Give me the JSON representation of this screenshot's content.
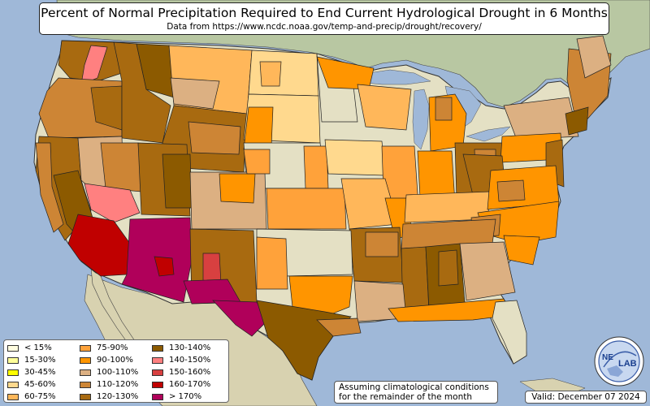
{
  "title": "Percent of Normal Precipitation Required to End Current Hydrological Drought in 6 Months",
  "subtitle": "Data from https://www.ncdc.noaa.gov/temp-and-precip/drought/recovery/",
  "note_line1": "Assuming climatological conditions",
  "note_line2": "for the remainder of the month",
  "valid": "Valid: December 07 2024",
  "logo_text_a": "NE",
  "logo_text_b": "LAB",
  "colors": {
    "ocean": "#9fb8d8",
    "land": "#e4e0c4",
    "c_lt15": "#fffde0",
    "c_15_30": "#ffff99",
    "c_30_45": "#ffff00",
    "c_45_60": "#ffd98e",
    "c_60_75": "#ffb75a",
    "c_75_90": "#ffa23a",
    "c_90_100": "#ff9500",
    "c_100_110": "#dcb082",
    "c_110_120": "#cd8535",
    "c_120_130": "#a86a10",
    "c_130_140": "#8c5a00",
    "c_140_150": "#ff8080",
    "c_150_160": "#d84040",
    "c_160_170": "#c00000",
    "c_gt170": "#b0005a"
  },
  "legend": {
    "items": [
      {
        "label": "< 15%",
        "color": "#fffde0"
      },
      {
        "label": "15-30%",
        "color": "#ffff99"
      },
      {
        "label": "30-45%",
        "color": "#ffff00"
      },
      {
        "label": "45-60%",
        "color": "#ffd98e"
      },
      {
        "label": "60-75%",
        "color": "#ffb75a"
      },
      {
        "label": "75-90%",
        "color": "#ffa23a"
      },
      {
        "label": "90-100%",
        "color": "#ff9500"
      },
      {
        "label": "100-110%",
        "color": "#dcb082"
      },
      {
        "label": "110-120%",
        "color": "#cd8535"
      },
      {
        "label": "120-130%",
        "color": "#a86a10"
      },
      {
        "label": "130-140%",
        "color": "#8c5a00"
      },
      {
        "label": "140-150%",
        "color": "#ff8080"
      },
      {
        "label": "150-160%",
        "color": "#d84040"
      },
      {
        "label": "160-170%",
        "color": "#c00000"
      },
      {
        "label": "> 170%",
        "color": "#b0005a"
      }
    ]
  }
}
